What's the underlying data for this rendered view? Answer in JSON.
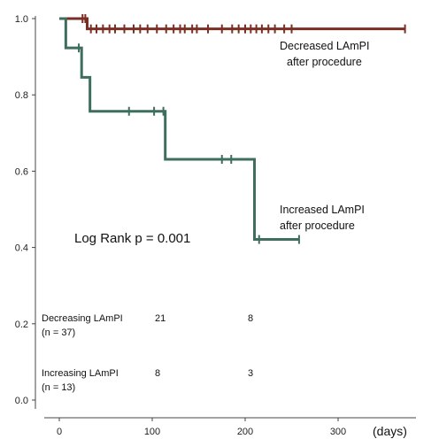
{
  "chart_data": {
    "type": "line",
    "xlabel": "(days)",
    "ylabel": "",
    "xlim": [
      -15,
      420
    ],
    "ylim": [
      0,
      1.0
    ],
    "x_ticks": [
      "0",
      "100",
      "200",
      "300"
    ],
    "y_ticks": [
      "0.0",
      "0.2",
      "0.4",
      "0.6",
      "0.8",
      "1.0"
    ],
    "series": [
      {
        "name": "Decreased LAmPI after procedure",
        "color": "#7a2f25",
        "steps": [
          [
            0,
            1.0
          ],
          [
            30,
            1.0
          ],
          [
            30,
            0.973
          ],
          [
            372,
            0.973
          ]
        ],
        "censor_x": [
          25,
          28,
          34,
          40,
          47,
          54,
          60,
          70,
          80,
          87,
          95,
          105,
          115,
          123,
          130,
          135,
          143,
          148,
          160,
          175,
          186,
          193,
          200,
          206,
          212,
          218,
          225,
          232,
          242,
          250,
          372
        ]
      },
      {
        "name": "Increased LAmPI after procedure",
        "color": "#3e6e5c",
        "steps": [
          [
            0,
            1.0
          ],
          [
            7,
            1.0
          ],
          [
            7,
            0.923
          ],
          [
            24,
            0.923
          ],
          [
            24,
            0.846
          ],
          [
            33,
            0.846
          ],
          [
            33,
            0.757
          ],
          [
            114,
            0.757
          ],
          [
            114,
            0.631
          ],
          [
            210,
            0.631
          ],
          [
            210,
            0.421
          ],
          [
            258,
            0.421
          ]
        ],
        "censor_x": [
          21,
          75,
          102,
          112,
          175,
          185,
          215,
          258
        ]
      }
    ],
    "annotations": {
      "decreased_label_1": "Decreased LAmPI",
      "decreased_label_2": "after procedure",
      "increased_label_1": "Increased LAmPI",
      "increased_label_2": "after procedure",
      "log_rank": "Log Rank p = 0.001"
    },
    "risk_table": {
      "rows": [
        {
          "label_1": "Decreasing LAmPI",
          "label_2": "(n = 37)",
          "values": [
            "21",
            "8"
          ]
        },
        {
          "label_1": "Increasing LAmPI",
          "label_2": "(n = 13)",
          "values": [
            "8",
            "3"
          ]
        }
      ],
      "value_x": [
        100,
        200
      ]
    }
  }
}
